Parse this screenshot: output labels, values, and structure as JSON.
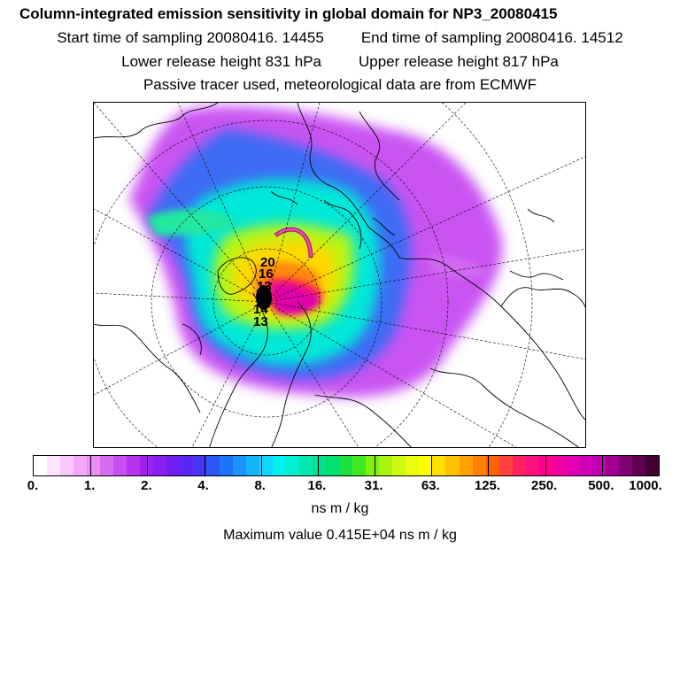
{
  "title": "Column-integrated emission sensitivity in global domain for NP3_20080415",
  "start_label": "Start time of sampling 20080416. 14455",
  "end_label": "End time of sampling 20080416. 14512",
  "lower_label": "Lower release height  831 hPa",
  "upper_label": "Upper release height  817 hPa",
  "note": "Passive tracer used, meteorological data are from ECMWF",
  "map": {
    "projection": "polar stereographic (north pole)",
    "point_labels": [
      "20",
      "16",
      "13",
      "14",
      "13"
    ],
    "colors": {
      "land_line": "#000000",
      "graticule": "#000000"
    }
  },
  "colorbar": {
    "tick_labels": [
      "0.",
      "1.",
      "2.",
      "4.",
      "8.",
      "16.",
      "31.",
      "63.",
      "125.",
      "250.",
      "500.",
      "1000."
    ],
    "colors": [
      "#ffffff",
      "#fde6fd",
      "#f7c8fa",
      "#f0aaf7",
      "#e98cf4",
      "#d66cf0",
      "#c94ef0",
      "#b833ef",
      "#a020f0",
      "#8a1ef0",
      "#701cf2",
      "#5a26f4",
      "#4338f5",
      "#2e55f7",
      "#1e74f8",
      "#1a94fa",
      "#14b4fb",
      "#10d4fc",
      "#00f0f0",
      "#00f0d0",
      "#00e8b0",
      "#00e090",
      "#00e070",
      "#20e040",
      "#40e820",
      "#80f010",
      "#a8f410",
      "#d0f810",
      "#ecfc10",
      "#ffff00",
      "#ffe000",
      "#ffc000",
      "#ffa000",
      "#ff8000",
      "#ff6000",
      "#ff4040",
      "#ff2060",
      "#ff1080",
      "#ff0090",
      "#f000a0",
      "#e000b0",
      "#d000b8",
      "#c000b0",
      "#a00090",
      "#800070",
      "#600050",
      "#400030"
    ]
  },
  "units": "ns m / kg",
  "max_value_label": "Maximum value  0.415E+04 ns m / kg"
}
